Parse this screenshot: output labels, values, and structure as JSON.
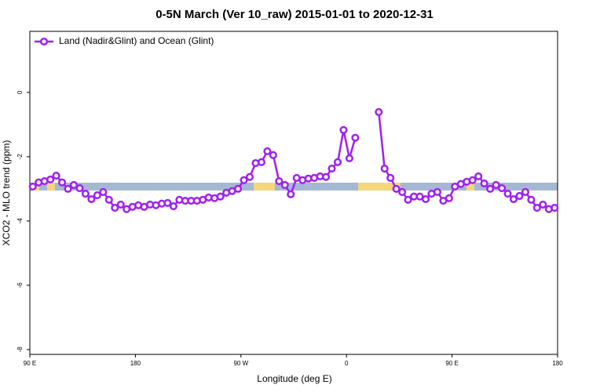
{
  "chart_data": {
    "type": "line",
    "title": "0-5N March (Ver 10_raw)   2015-01-01 to 2020-12-31",
    "x_label": "Longitude (deg E)",
    "y_label": "XCO2 - MLO trend (ppm)",
    "x": [
      92.5,
      97.5,
      102.5,
      107.5,
      112.5,
      117.5,
      122.5,
      127.5,
      132.5,
      137.5,
      142.5,
      147.5,
      152.5,
      157.5,
      162.5,
      167.5,
      172.5,
      177.5,
      182.5,
      187.5,
      192.5,
      197.5,
      202.5,
      207.5,
      212.5,
      217.5,
      222.5,
      227.5,
      232.5,
      237.5,
      242.5,
      247.5,
      252.5,
      257.5,
      262.5,
      267.5,
      272.5,
      277.5,
      282.5,
      287.5,
      292.5,
      297.5,
      302.5,
      307.5,
      312.5,
      317.5,
      322.5,
      327.5,
      332.5,
      337.5,
      342.5,
      347.5,
      352.5,
      357.5,
      362.5,
      367.5,
      372.5,
      377.5,
      382.5,
      387.5,
      392.5,
      397.5,
      402.5,
      407.5,
      412.5,
      417.5,
      422.5,
      427.5,
      432.5,
      437.5,
      442.5,
      447.5,
      452.5,
      457.5,
      462.5,
      467.5,
      472.5,
      477.5,
      482.5,
      487.5,
      492.5,
      497.5,
      502.5,
      507.5,
      512.5,
      517.5,
      522.5,
      527.5,
      532.5,
      537.5
    ],
    "series": [
      {
        "name": "Land (Nadir&Glint) and Ocean (Glint)",
        "color": "#a020f0",
        "values": [
          -2.93,
          -2.8,
          -2.76,
          -2.71,
          -2.59,
          -2.8,
          -3.0,
          -2.88,
          -2.98,
          -3.15,
          -3.32,
          -3.2,
          -3.1,
          -3.34,
          -3.59,
          -3.49,
          -3.63,
          -3.56,
          -3.51,
          -3.56,
          -3.49,
          -3.51,
          -3.46,
          -3.44,
          -3.54,
          -3.34,
          -3.37,
          -3.37,
          -3.37,
          -3.34,
          -3.27,
          -3.29,
          -3.24,
          -3.12,
          -3.07,
          -3.0,
          -2.73,
          -2.63,
          -2.2,
          -2.17,
          -1.83,
          -1.95,
          -2.76,
          -2.88,
          -3.17,
          -2.66,
          -2.73,
          -2.68,
          -2.66,
          -2.61,
          -2.63,
          -2.37,
          -2.17,
          -1.17,
          -2.05,
          -1.41,
          null,
          null,
          null,
          -0.61,
          -2.37,
          -2.66,
          -3.0,
          -3.1,
          -3.34,
          -3.24,
          -3.24,
          -3.32,
          -3.15,
          -3.1,
          -3.37,
          -3.29,
          -2.93,
          -2.85,
          -2.78,
          -2.73,
          -2.61,
          -2.83,
          -3.0,
          -2.88,
          -2.98,
          -3.15,
          -3.32,
          -3.22,
          -3.1,
          -3.34,
          -3.59,
          -3.49,
          -3.63,
          -3.59
        ]
      }
    ],
    "xlim": [
      90,
      540
    ],
    "xticks": [
      {
        "value": 90,
        "label": "90 E"
      },
      {
        "value": 180,
        "label": "180"
      },
      {
        "value": 270,
        "label": "90 W"
      },
      {
        "value": 360,
        "label": "0"
      },
      {
        "value": 450,
        "label": "90 E"
      },
      {
        "value": 540,
        "label": "180"
      }
    ],
    "ylim": [
      -8.15,
      1.9
    ],
    "yticks": [
      -8,
      -6,
      -4,
      -2,
      0
    ],
    "legend": "top-left"
  }
}
